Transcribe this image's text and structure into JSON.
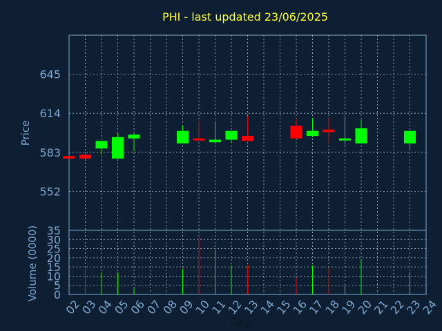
{
  "chart_data": {
    "title": "PHI - last updated 23/06/2025",
    "type": "candlestick",
    "xlabel": "Day",
    "x_ticks": [
      "02",
      "03",
      "04",
      "05",
      "06",
      "07",
      "08",
      "09",
      "10",
      "11",
      "12",
      "13",
      "14",
      "15",
      "16",
      "17",
      "18",
      "19",
      "20",
      "21",
      "22",
      "23",
      "24"
    ],
    "price": {
      "ylabel": "Price",
      "yticks": [
        552,
        583,
        614,
        645
      ],
      "ylim": [
        521,
        676
      ],
      "candles": [
        {
          "day": "02",
          "open": 580,
          "close": 578,
          "high": 580,
          "low": 578,
          "color": "#ff0000"
        },
        {
          "day": "03",
          "open": 581,
          "close": 578,
          "high": 582,
          "low": 578,
          "color": "#ff0000"
        },
        {
          "day": "04",
          "open": 586,
          "close": 592,
          "high": 592,
          "low": 581,
          "color": "#00ff00"
        },
        {
          "day": "05",
          "open": 578,
          "close": 595,
          "high": 598,
          "low": 578,
          "color": "#00ff00"
        },
        {
          "day": "06",
          "open": 594,
          "close": 597,
          "high": 598,
          "low": 584,
          "color": "#00ff00"
        },
        {
          "day": "09",
          "open": 590,
          "close": 600,
          "high": 604,
          "low": 590,
          "color": "#00ff00"
        },
        {
          "day": "10",
          "open": 594,
          "close": 593,
          "high": 608,
          "low": 592,
          "color": "#ff0000"
        },
        {
          "day": "11",
          "open": 591,
          "close": 593,
          "high": 607,
          "low": 590,
          "color": "#00ff00"
        },
        {
          "day": "12",
          "open": 593,
          "close": 600,
          "high": 600,
          "low": 590,
          "color": "#00ff00"
        },
        {
          "day": "13",
          "open": 596,
          "close": 592,
          "high": 612,
          "low": 592,
          "color": "#ff0000"
        },
        {
          "day": "16",
          "open": 604,
          "close": 594,
          "high": 610,
          "low": 594,
          "color": "#ff0000"
        },
        {
          "day": "17",
          "open": 596,
          "close": 600,
          "high": 610,
          "low": 595,
          "color": "#00ff00"
        },
        {
          "day": "18",
          "open": 601,
          "close": 599,
          "high": 610,
          "low": 590,
          "color": "#ff0000"
        },
        {
          "day": "19",
          "open": 593,
          "close": 594,
          "high": 611,
          "low": 589,
          "color": "#00ff00"
        },
        {
          "day": "20",
          "open": 590,
          "close": 602,
          "high": 609,
          "low": 590,
          "color": "#00ff00"
        },
        {
          "day": "23",
          "open": 590,
          "close": 600,
          "high": 600,
          "low": 585,
          "color": "#00ff00"
        }
      ]
    },
    "volume": {
      "ylabel": "Volume (0000)",
      "yticks": [
        0,
        5,
        10,
        15,
        20,
        25,
        30,
        35
      ],
      "ylim": [
        0,
        35
      ],
      "bars": [
        {
          "day": "03",
          "value": 14,
          "color": "#ff0000"
        },
        {
          "day": "04",
          "value": 12,
          "color": "#00ff00"
        },
        {
          "day": "05",
          "value": 12,
          "color": "#00ff00"
        },
        {
          "day": "06",
          "value": 4,
          "color": "#00ff00"
        },
        {
          "day": "09",
          "value": 14,
          "color": "#00ff00"
        },
        {
          "day": "10",
          "value": 31,
          "color": "#ff0000"
        },
        {
          "day": "11",
          "value": 25,
          "color": "#00ff00"
        },
        {
          "day": "12",
          "value": 16,
          "color": "#00ff00"
        },
        {
          "day": "13",
          "value": 16,
          "color": "#ff0000"
        },
        {
          "day": "16",
          "value": 9,
          "color": "#ff0000"
        },
        {
          "day": "17",
          "value": 16,
          "color": "#00ff00"
        },
        {
          "day": "18",
          "value": 15,
          "color": "#ff0000"
        },
        {
          "day": "19",
          "value": 5,
          "color": "#00ff00"
        },
        {
          "day": "20",
          "value": 19,
          "color": "#00ff00"
        },
        {
          "day": "23",
          "value": 12,
          "color": "#00ff00"
        }
      ]
    },
    "grid": true,
    "colors": {
      "background": "#0f1f33",
      "up": "#00ff00",
      "down": "#ff0000",
      "title": "#ffff33",
      "axis": "#7fa8cf"
    }
  }
}
